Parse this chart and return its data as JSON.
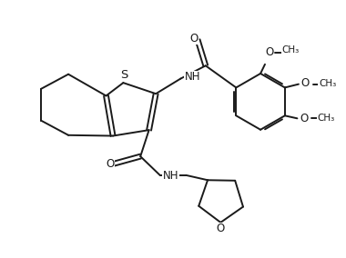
{
  "bg_color": "#ffffff",
  "line_color": "#1a1a1a",
  "line_width": 1.4,
  "font_size": 8.5,
  "fig_width": 3.8,
  "fig_height": 2.84,
  "xlim": [
    0,
    10
  ],
  "ylim": [
    0,
    7.5
  ]
}
